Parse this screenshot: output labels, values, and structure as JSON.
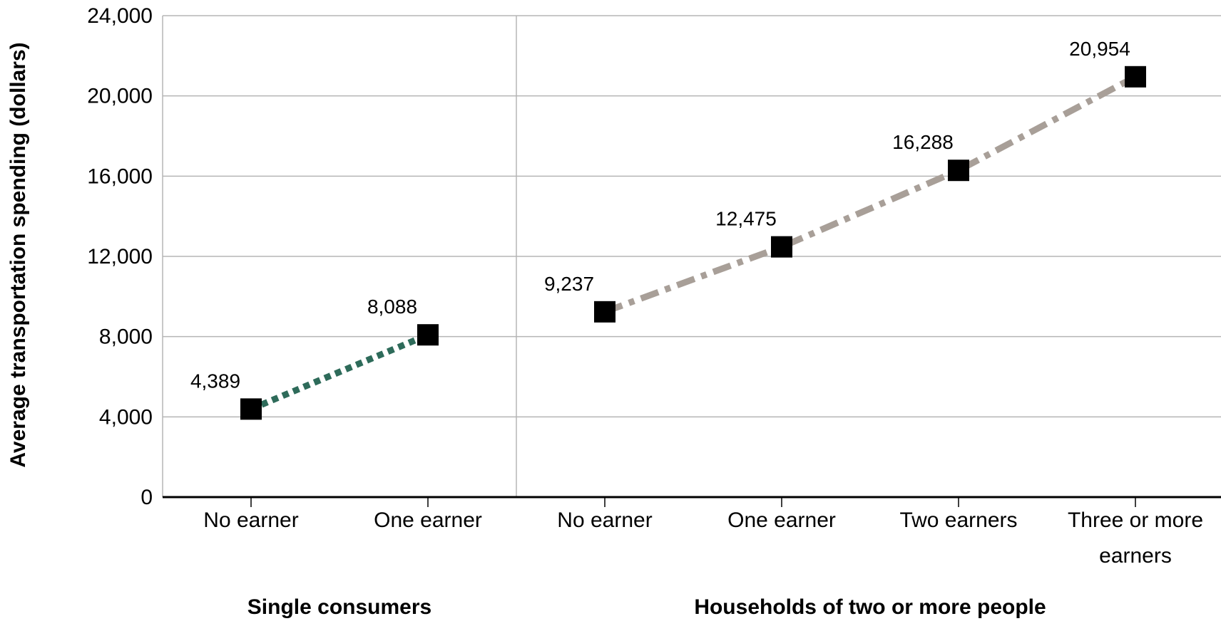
{
  "chart_data": {
    "type": "line",
    "ylabel": "Average transportation spending (dollars)",
    "ylim": [
      0,
      24000
    ],
    "yticks": [
      0,
      4000,
      8000,
      12000,
      16000,
      20000,
      24000
    ],
    "ytick_labels": [
      "0",
      "4,000",
      "8,000",
      "12,000",
      "16,000",
      "20,000",
      "24,000"
    ],
    "grid": true,
    "groups": [
      {
        "label": "Single consumers",
        "categories": [
          [
            "No earner"
          ],
          [
            "One earner"
          ]
        ],
        "series": {
          "values": [
            4389,
            8088
          ],
          "value_labels": [
            "4,389",
            "8,088"
          ],
          "color": "#2e6b5a",
          "line_style": "dotted"
        }
      },
      {
        "label": "Households of two or more people",
        "categories": [
          [
            "No earner"
          ],
          [
            "One earner"
          ],
          [
            "Two earners"
          ],
          [
            "Three or more",
            "earners"
          ]
        ],
        "series": {
          "values": [
            9237,
            12475,
            16288,
            20954
          ],
          "value_labels": [
            "9,237",
            "12,475",
            "16,288",
            "20,954"
          ],
          "color": "#a89f98",
          "line_style": "dash-dot"
        }
      }
    ],
    "marker_color": "#000000",
    "gridline_color": "#b5b5b5",
    "axis_color": "#000000"
  }
}
